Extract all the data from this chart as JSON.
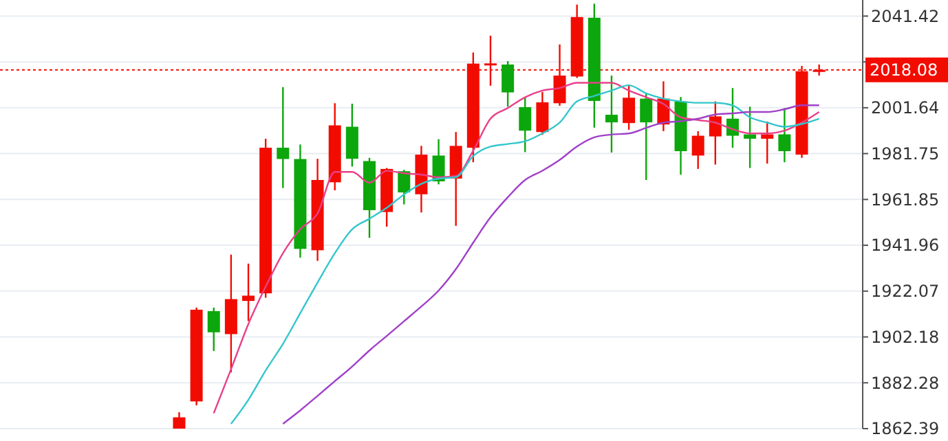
{
  "chart_data": {
    "type": "candlestick",
    "categories": [
      null,
      null,
      null,
      null,
      null,
      null,
      null,
      null,
      null,
      null,
      null,
      null,
      null,
      null,
      null,
      null,
      null,
      null,
      null,
      null,
      null,
      null,
      null,
      null,
      null,
      null,
      null,
      null,
      null,
      null,
      null,
      null,
      null,
      null,
      null,
      null,
      null,
      null
    ],
    "ohlc": [
      [
        1862.4,
        1869.5,
        1862.4,
        1867.3
      ],
      [
        1874.2,
        1914.9,
        1872.5,
        1914.0
      ],
      [
        1913.4,
        1914.9,
        1896.1,
        1904.2
      ],
      [
        1903.4,
        1937.9,
        1886.8,
        1918.6
      ],
      [
        1917.8,
        1934.0,
        1909.1,
        1920.1
      ],
      [
        1921.1,
        1988.2,
        1919.2,
        1984.3
      ],
      [
        1984.3,
        2010.6,
        1966.8,
        1979.4
      ],
      [
        1979.4,
        1985.7,
        1936.6,
        1940.4
      ],
      [
        1939.8,
        1979.5,
        1935.2,
        1970.3
      ],
      [
        1969.3,
        2003.6,
        1965.8,
        1994.0
      ],
      [
        1993.4,
        2003.4,
        1976.1,
        1979.5
      ],
      [
        1978.5,
        1979.9,
        1945.2,
        1957.2
      ],
      [
        1956.4,
        1975.5,
        1950.0,
        1975.1
      ],
      [
        1974.1,
        1974.7,
        1959.7,
        1964.9
      ],
      [
        1964.1,
        1985.1,
        1956.2,
        1981.3
      ],
      [
        1980.9,
        1988.0,
        1968.4,
        1969.7
      ],
      [
        1970.9,
        1991.1,
        1950.4,
        1985.1
      ],
      [
        1984.3,
        2025.6,
        1978.0,
        2020.8
      ],
      [
        2020.5,
        2032.9,
        2011.2,
        2020.9
      ],
      [
        2020.4,
        2021.9,
        2002.1,
        2008.3
      ],
      [
        2001.9,
        2006.3,
        1982.4,
        1991.7
      ],
      [
        1991.1,
        2008.5,
        1989.9,
        2004.0
      ],
      [
        2003.6,
        2029.1,
        2002.5,
        2015.6
      ],
      [
        2015.2,
        2046.4,
        2014.6,
        2041.0
      ],
      [
        2040.7,
        2046.8,
        1993.0,
        2004.6
      ],
      [
        1998.6,
        2015.6,
        1982.2,
        1995.3
      ],
      [
        1995.0,
        2011.7,
        1992.1,
        2006.0
      ],
      [
        2005.6,
        2007.9,
        1970.3,
        1995.3
      ],
      [
        1994.4,
        2013.1,
        1991.5,
        2005.6
      ],
      [
        2004.4,
        2006.3,
        1972.6,
        1982.8
      ],
      [
        1980.9,
        1991.5,
        1975.1,
        1989.5
      ],
      [
        1989.2,
        2004.4,
        1977.0,
        1997.9
      ],
      [
        1996.9,
        2010.2,
        1984.3,
        1989.5
      ],
      [
        1990.1,
        2002.1,
        1975.5,
        1988.2
      ],
      [
        1988.2,
        1995.7,
        1977.4,
        1990.1
      ],
      [
        1990.1,
        2001.5,
        1978.0,
        1982.8
      ],
      [
        1981.3,
        2019.8,
        1979.9,
        2017.5
      ],
      [
        2017.2,
        2020.4,
        2015.6,
        2018.08
      ]
    ],
    "colors": [
      "#f20c00",
      "#f20c00",
      "#0ca70c",
      "#f20c00",
      "#f20c00",
      "#f20c00",
      "#0ca70c",
      "#0ca70c",
      "#f20c00",
      "#f20c00",
      "#0ca70c",
      "#0ca70c",
      "#f20c00",
      "#0ca70c",
      "#f20c00",
      "#0ca70c",
      "#f20c00",
      "#f20c00",
      "#f20c00",
      "#0ca70c",
      "#0ca70c",
      "#f20c00",
      "#f20c00",
      "#f20c00",
      "#0ca70c",
      "#0ca70c",
      "#f20c00",
      "#0ca70c",
      "#f20c00",
      "#0ca70c",
      "#f20c00",
      "#f20c00",
      "#0ca70c",
      "#0ca70c",
      "#f20c00",
      "#0ca70c",
      "#f20c00",
      "#f20c00"
    ],
    "series": [
      {
        "type": "line",
        "color": "#e8408a",
        "values": [
          null,
          null,
          1869.1,
          1888.2,
          1907.8,
          1924.0,
          1938.5,
          1948.9,
          1955.8,
          1973.8,
          1973.8,
          1969.1,
          1974.3,
          1973.2,
          1972.6,
          1971.5,
          1972.0,
          1983.0,
          1996.9,
          2001.5,
          2006.2,
          2009.1,
          2010.2,
          2012.5,
          2012.5,
          2012.5,
          2009.1,
          2006.2,
          2003.3,
          1997.5,
          1996.3,
          1995.2,
          1992.3,
          1990.5,
          1990.5,
          1991.7,
          1995.2,
          1999.8
        ]
      },
      {
        "type": "line",
        "color": "#33c6cc",
        "values": [
          null,
          null,
          null,
          1864.5,
          1874.9,
          1887.6,
          1899.2,
          1912.5,
          1925.8,
          1938.5,
          1948.9,
          1953.5,
          1958.2,
          1964.0,
          1968.6,
          1970.9,
          1971.5,
          1980.7,
          1984.8,
          1985.9,
          1987.1,
          1990.5,
          1995.2,
          2004.4,
          2006.8,
          2009.1,
          2011.4,
          2007.9,
          2005.6,
          2004.4,
          2003.8,
          2003.8,
          2002.7,
          1997.5,
          1995.2,
          1993.4,
          1994.6,
          1996.9
        ]
      },
      {
        "type": "line",
        "color": "#a040c8",
        "values": [
          null,
          null,
          null,
          null,
          null,
          null,
          1864.5,
          1870.3,
          1876.6,
          1883.0,
          1889.3,
          1896.3,
          1902.6,
          1909.0,
          1915.4,
          1922.3,
          1931.6,
          1943.1,
          1954.1,
          1962.8,
          1970.3,
          1974.3,
          1979.0,
          1984.8,
          1988.8,
          1990.0,
          1990.5,
          1992.9,
          1995.2,
          1995.8,
          1996.9,
          1998.7,
          1999.2,
          1999.8,
          1999.8,
          2001.0,
          2002.7,
          2002.7
        ]
      }
    ],
    "ylim": [
      1862.39,
      2048.4
    ],
    "yticks": [
      2041.42,
      {
        "value": 2021.53,
        "label": null
      },
      2001.64,
      1981.75,
      1961.85,
      1941.96,
      1922.07,
      1902.18,
      1882.28,
      1862.39
    ],
    "ref_lines": [
      {
        "axis": "y",
        "value": 2018.08,
        "label": "2018.08",
        "color": "#f20c00",
        "line_style": "dotted"
      }
    ],
    "grid": "y",
    "marker": "none",
    "line_style": "solid"
  }
}
